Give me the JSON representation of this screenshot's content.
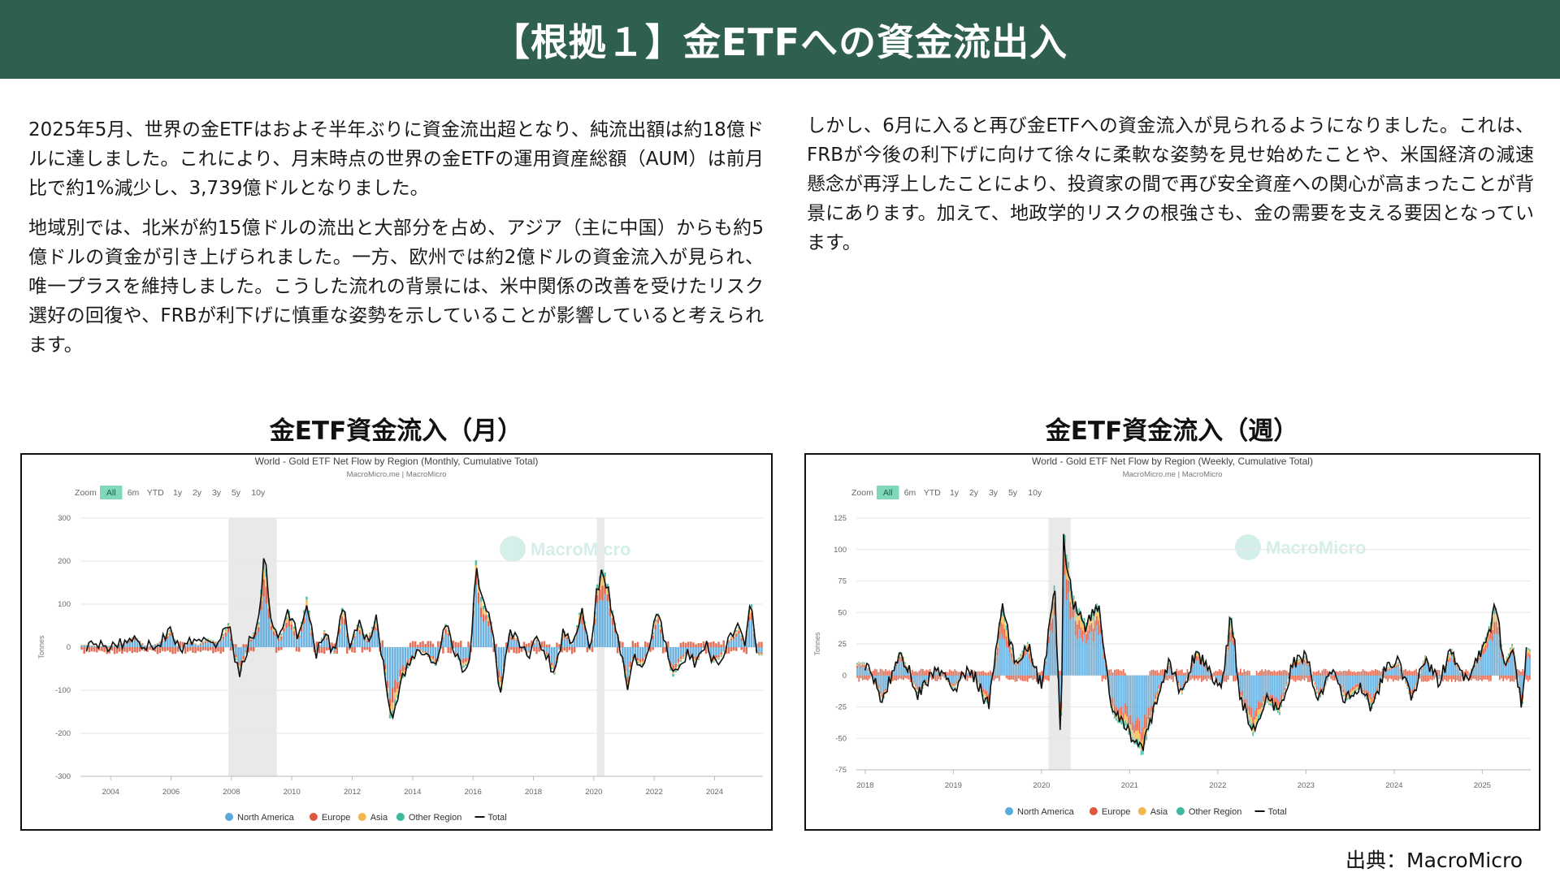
{
  "header": {
    "title": "【根拠１】金ETFへの資金流出入"
  },
  "left_text": {
    "p1": "2025年5月、世界の金ETFはおよそ半年ぶりに資金流出超となり、純流出額は約18億ドルに達しました。これにより、月末時点の世界の金ETFの運用資産総額（AUM）は前月比で約1%減少し、3,739億ドルとなりました。",
    "p2": "地域別では、北米が約15億ドルの流出と大部分を占め、アジア（主に中国）からも約5億ドルの資金が引き上げられました。一方、欧州では約2億ドルの資金流入が見られ、唯一プラスを維持しました。こうした流れの背景には、米中関係の改善を受けたリスク選好の回復や、FRBが利下げに慎重な姿勢を示していることが影響していると考えられます。"
  },
  "right_text": {
    "p1": "しかし、6月に入ると再び金ETFへの資金流入が見られるようになりました。これは、FRBが今後の利下げに向けて徐々に柔軟な姿勢を見せ始めたことや、米国経済の減速懸念が再浮上したことにより、投資家の間で再び安全資産への関心が高まったことが背景にあります。加えて、地政学的リスクの根強さも、金の需要を支える要因となっています。"
  },
  "source": "出典：MacroMicro",
  "colors": {
    "header_bg": "#2f5f4f",
    "north_america": "#5aa9dc",
    "europe": "#e0573c",
    "asia": "#f2b84b",
    "other_region": "#3fb8a0",
    "total": "#111111",
    "zoom_active": "#7fd8b8",
    "recession_band": "#e9e9e9"
  },
  "charts": {
    "monthly": {
      "heading": "金ETF資金流入（月）",
      "title": "World - Gold ETF Net Flow by Region (Monthly, Cumulative Total)",
      "subtitle": "MacroMicro.me | MacroMicro",
      "watermark": "MacroMicro",
      "zoom": {
        "label": "Zoom",
        "options": [
          "All",
          "6m",
          "YTD",
          "1y",
          "2y",
          "3y",
          "5y",
          "10y"
        ],
        "active": "All"
      },
      "legend": [
        "North America",
        "Europe",
        "Asia",
        "Other Region",
        "Total"
      ]
    },
    "weekly": {
      "heading": "金ETF資金流入（週）",
      "title": "World - Gold ETF Net Flow by Region (Weekly, Cumulative Total)",
      "subtitle": "MacroMicro.me | MacroMicro",
      "watermark": "MacroMicro",
      "zoom": {
        "label": "Zoom",
        "options": [
          "All",
          "6m",
          "YTD",
          "1y",
          "2y",
          "3y",
          "5y",
          "10y"
        ],
        "active": "All"
      },
      "legend": [
        "North America",
        "Europe",
        "Asia",
        "Other Region",
        "Total"
      ]
    }
  },
  "chart_data": [
    {
      "type": "bar",
      "title": "World - Gold ETF Net Flow by Region (Monthly, Cumulative Total)",
      "ylabel": "Tonnes",
      "ylim": [
        -300,
        300
      ],
      "yticks": [
        300,
        200,
        100,
        0,
        -100,
        -200,
        -300
      ],
      "xticks": [
        "2004",
        "2006",
        "2008",
        "2010",
        "2012",
        "2014",
        "2016",
        "2018",
        "2020",
        "2022",
        "2024"
      ],
      "xrange": [
        2003.0,
        2025.6
      ],
      "recession_bands": [
        [
          2007.9,
          2009.5
        ],
        [
          2020.1,
          2020.35
        ]
      ],
      "total_series": [
        [
          2003.2,
          5
        ],
        [
          2003.6,
          2
        ],
        [
          2004.0,
          3
        ],
        [
          2004.4,
          8
        ],
        [
          2004.8,
          25
        ],
        [
          2005.2,
          0
        ],
        [
          2005.6,
          10
        ],
        [
          2006.0,
          40
        ],
        [
          2006.3,
          -10
        ],
        [
          2006.6,
          15
        ],
        [
          2006.9,
          5
        ],
        [
          2007.2,
          20
        ],
        [
          2007.6,
          10
        ],
        [
          2007.9,
          55
        ],
        [
          2008.1,
          -20
        ],
        [
          2008.3,
          -60
        ],
        [
          2008.6,
          15
        ],
        [
          2008.9,
          55
        ],
        [
          2009.1,
          225
        ],
        [
          2009.3,
          60
        ],
        [
          2009.6,
          20
        ],
        [
          2009.9,
          85
        ],
        [
          2010.2,
          20
        ],
        [
          2010.5,
          110
        ],
        [
          2010.8,
          -15
        ],
        [
          2011.1,
          40
        ],
        [
          2011.4,
          -20
        ],
        [
          2011.7,
          105
        ],
        [
          2011.9,
          -10
        ],
        [
          2012.2,
          55
        ],
        [
          2012.5,
          20
        ],
        [
          2012.8,
          65
        ],
        [
          2013.1,
          -70
        ],
        [
          2013.3,
          -175
        ],
        [
          2013.6,
          -80
        ],
        [
          2013.9,
          -40
        ],
        [
          2014.2,
          -5
        ],
        [
          2014.5,
          -20
        ],
        [
          2014.8,
          -45
        ],
        [
          2015.1,
          55
        ],
        [
          2015.4,
          -15
        ],
        [
          2015.7,
          -50
        ],
        [
          2015.9,
          -30
        ],
        [
          2016.1,
          185
        ],
        [
          2016.3,
          100
        ],
        [
          2016.6,
          60
        ],
        [
          2016.9,
          -110
        ],
        [
          2017.2,
          35
        ],
        [
          2017.5,
          15
        ],
        [
          2017.8,
          -20
        ],
        [
          2018.1,
          20
        ],
        [
          2018.4,
          -15
        ],
        [
          2018.7,
          -60
        ],
        [
          2019.0,
          40
        ],
        [
          2019.3,
          5
        ],
        [
          2019.6,
          95
        ],
        [
          2019.9,
          -20
        ],
        [
          2020.1,
          130
        ],
        [
          2020.3,
          180
        ],
        [
          2020.6,
          90
        ],
        [
          2020.9,
          -10
        ],
        [
          2021.1,
          -95
        ],
        [
          2021.3,
          -25
        ],
        [
          2021.6,
          -45
        ],
        [
          2021.9,
          15
        ],
        [
          2022.1,
          80
        ],
        [
          2022.3,
          25
        ],
        [
          2022.6,
          -70
        ],
        [
          2022.9,
          -30
        ],
        [
          2023.1,
          -15
        ],
        [
          2023.4,
          -40
        ],
        [
          2023.7,
          10
        ],
        [
          2023.9,
          -35
        ],
        [
          2024.2,
          -25
        ],
        [
          2024.5,
          20
        ],
        [
          2024.8,
          45
        ],
        [
          2025.0,
          5
        ],
        [
          2025.2,
          110
        ],
        [
          2025.4,
          -18
        ]
      ]
    },
    {
      "type": "bar",
      "title": "World - Gold ETF Net Flow by Region (Weekly, Cumulative Total)",
      "ylabel": "Tonnes",
      "ylim": [
        -75,
        125
      ],
      "yticks": [
        125,
        100,
        75,
        50,
        25,
        0,
        -25,
        -50,
        -75
      ],
      "xticks": [
        "2018",
        "2019",
        "2020",
        "2021",
        "2022",
        "2023",
        "2024",
        "2025"
      ],
      "xrange": [
        2017.9,
        2025.55
      ],
      "recession_bands": [
        [
          2020.08,
          2020.33
        ]
      ],
      "total_series": [
        [
          2018.0,
          10
        ],
        [
          2018.2,
          -20
        ],
        [
          2018.4,
          20
        ],
        [
          2018.6,
          -15
        ],
        [
          2018.8,
          5
        ],
        [
          2019.0,
          -10
        ],
        [
          2019.2,
          5
        ],
        [
          2019.4,
          -25
        ],
        [
          2019.55,
          55
        ],
        [
          2019.7,
          10
        ],
        [
          2019.85,
          25
        ],
        [
          2020.0,
          -10
        ],
        [
          2020.15,
          70
        ],
        [
          2020.22,
          -60
        ],
        [
          2020.25,
          110
        ],
        [
          2020.35,
          60
        ],
        [
          2020.5,
          40
        ],
        [
          2020.65,
          55
        ],
        [
          2020.8,
          -30
        ],
        [
          2020.95,
          -40
        ],
        [
          2021.05,
          -50
        ],
        [
          2021.15,
          -60
        ],
        [
          2021.3,
          -20
        ],
        [
          2021.45,
          10
        ],
        [
          2021.6,
          -15
        ],
        [
          2021.75,
          20
        ],
        [
          2021.9,
          5
        ],
        [
          2022.05,
          -10
        ],
        [
          2022.15,
          50
        ],
        [
          2022.25,
          -15
        ],
        [
          2022.4,
          -45
        ],
        [
          2022.55,
          -20
        ],
        [
          2022.7,
          -30
        ],
        [
          2022.85,
          10
        ],
        [
          2023.0,
          15
        ],
        [
          2023.15,
          -20
        ],
        [
          2023.3,
          5
        ],
        [
          2023.45,
          -20
        ],
        [
          2023.6,
          -10
        ],
        [
          2023.75,
          -25
        ],
        [
          2023.9,
          5
        ],
        [
          2024.05,
          10
        ],
        [
          2024.2,
          -20
        ],
        [
          2024.35,
          15
        ],
        [
          2024.5,
          -5
        ],
        [
          2024.65,
          20
        ],
        [
          2024.8,
          -5
        ],
        [
          2024.95,
          15
        ],
        [
          2025.1,
          40
        ],
        [
          2025.15,
          55
        ],
        [
          2025.25,
          10
        ],
        [
          2025.35,
          25
        ],
        [
          2025.45,
          -30
        ],
        [
          2025.5,
          20
        ]
      ]
    }
  ]
}
